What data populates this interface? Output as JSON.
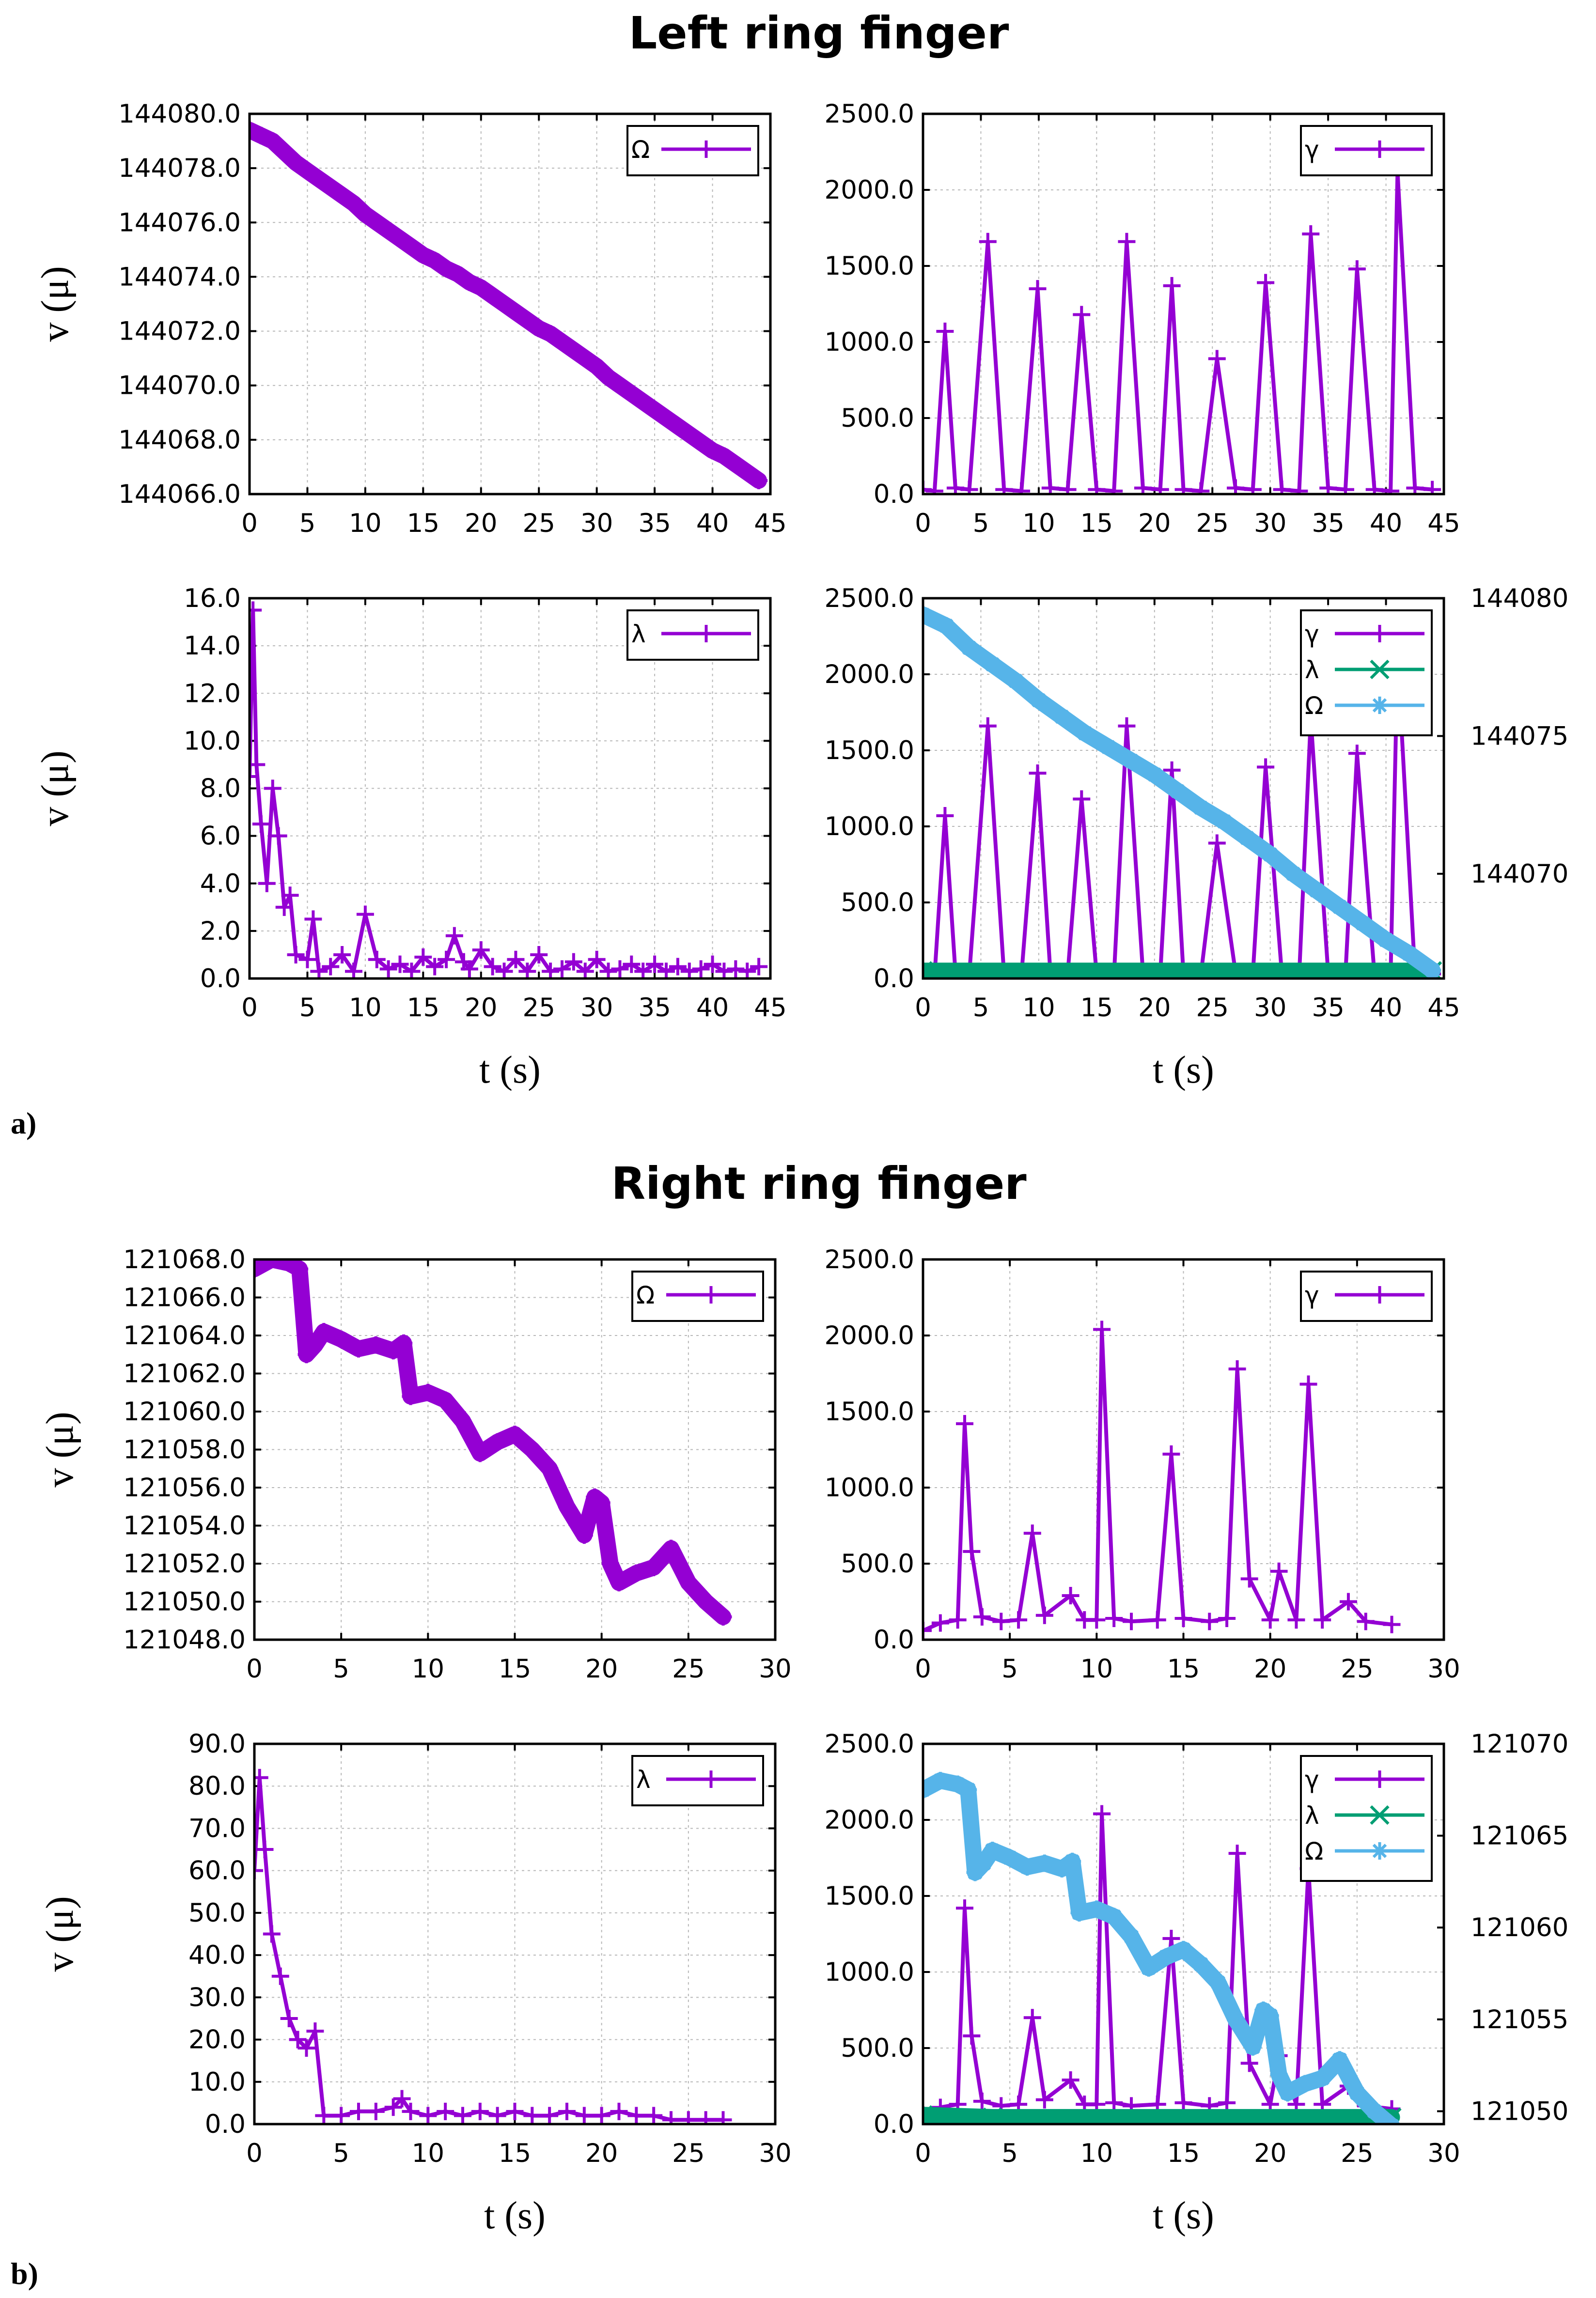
{
  "figure": {
    "sections": [
      {
        "title": "Left ring finger",
        "label": "a)"
      },
      {
        "title": "Right ring finger",
        "label": "b)"
      }
    ],
    "colors": {
      "gamma": "#9400d3",
      "lambda": "#009e73",
      "omega": "#56b4e9"
    }
  },
  "chart_data": [
    {
      "panel": "a-omega",
      "type": "line",
      "xlabel": "",
      "ylabel": "v (μ)",
      "xlim": [
        0,
        45
      ],
      "ylim": [
        144066.0,
        144080.0
      ],
      "xticks": [
        "0",
        "5",
        "10",
        "15",
        "20",
        "25",
        "30",
        "35",
        "40",
        "45"
      ],
      "yticks": [
        "144066.0",
        "144068.0",
        "144070.0",
        "144072.0",
        "144074.0",
        "144076.0",
        "144078.0",
        "144080.0"
      ],
      "grid": true,
      "legend": "top-right",
      "series": [
        {
          "name": "Ω",
          "color": "#9400d3",
          "marker": "+",
          "x": [
            0,
            1,
            2,
            3,
            4,
            5,
            6,
            7,
            8,
            9,
            10,
            11,
            12,
            13,
            14,
            15,
            16,
            17,
            18,
            19,
            20,
            21,
            22,
            23,
            24,
            25,
            26,
            27,
            28,
            29,
            30,
            31,
            32,
            33,
            34,
            35,
            36,
            37,
            38,
            39,
            40,
            41,
            42,
            43,
            44
          ],
          "y": [
            144079.4,
            144079.2,
            144079.0,
            144078.6,
            144078.2,
            144077.9,
            144077.6,
            144077.3,
            144077.0,
            144076.7,
            144076.3,
            144076.0,
            144075.7,
            144075.4,
            144075.1,
            144074.8,
            144074.6,
            144074.3,
            144074.1,
            144073.8,
            144073.6,
            144073.3,
            144073.0,
            144072.7,
            144072.4,
            144072.1,
            144071.9,
            144071.6,
            144071.3,
            144071.0,
            144070.7,
            144070.3,
            144070.0,
            144069.7,
            144069.4,
            144069.1,
            144068.8,
            144068.5,
            144068.2,
            144067.9,
            144067.6,
            144067.4,
            144067.1,
            144066.8,
            144066.5
          ]
        }
      ]
    },
    {
      "panel": "a-gamma",
      "type": "line",
      "xlabel": "",
      "ylabel": "",
      "xlim": [
        0,
        45
      ],
      "ylim": [
        0,
        2500
      ],
      "xticks": [
        "0",
        "5",
        "10",
        "15",
        "20",
        "25",
        "30",
        "35",
        "40",
        "45"
      ],
      "yticks": [
        "0.0",
        "500.0",
        "1000.0",
        "1500.0",
        "2000.0",
        "2500.0"
      ],
      "grid": true,
      "legend": "top-right",
      "series": [
        {
          "name": "γ",
          "color": "#9400d3",
          "marker": "+",
          "x": [
            0,
            1,
            1.9,
            2.8,
            4,
            5.6,
            7,
            8.5,
            9.9,
            11,
            12.5,
            13.7,
            15,
            16.5,
            17.6,
            19,
            20.5,
            21.5,
            22.5,
            24,
            25.4,
            27,
            28.5,
            29.6,
            31,
            32.5,
            33.5,
            35,
            36.5,
            37.5,
            39,
            40.4,
            41,
            42.5,
            44
          ],
          "y": [
            30,
            20,
            1070,
            40,
            30,
            1660,
            30,
            20,
            1350,
            40,
            30,
            1180,
            30,
            20,
            1660,
            40,
            30,
            1370,
            30,
            20,
            890,
            40,
            30,
            1390,
            30,
            20,
            1710,
            40,
            30,
            1480,
            30,
            20,
            2120,
            40,
            30
          ]
        }
      ]
    },
    {
      "panel": "a-lambda",
      "type": "line",
      "xlabel": "t (s)",
      "ylabel": "v (μ)",
      "xlim": [
        0,
        45
      ],
      "ylim": [
        0,
        16
      ],
      "xticks": [
        "0",
        "5",
        "10",
        "15",
        "20",
        "25",
        "30",
        "35",
        "40",
        "45"
      ],
      "yticks": [
        "0.0",
        "2.0",
        "4.0",
        "6.0",
        "8.0",
        "10.0",
        "12.0",
        "14.0",
        "16.0"
      ],
      "grid": true,
      "legend": "top-right",
      "series": [
        {
          "name": "λ",
          "color": "#9400d3",
          "marker": "+",
          "x": [
            0,
            0.3,
            0.6,
            1,
            1.5,
            2,
            2.5,
            3,
            3.5,
            4,
            5,
            5.5,
            6,
            7,
            8,
            9,
            10,
            11,
            12,
            13,
            14,
            15,
            16,
            17,
            17.7,
            18.5,
            19,
            20,
            21,
            22,
            23,
            24,
            25,
            26,
            27,
            28,
            29,
            30,
            31,
            32,
            33,
            34,
            35,
            36,
            37,
            38,
            39,
            40,
            41,
            42,
            43,
            44
          ],
          "y": [
            8.5,
            15.5,
            9.0,
            6.5,
            4.0,
            8.0,
            6.0,
            3.0,
            3.5,
            1.0,
            0.8,
            2.5,
            0.3,
            0.5,
            1.0,
            0.3,
            2.7,
            0.8,
            0.4,
            0.6,
            0.3,
            0.9,
            0.5,
            0.8,
            1.8,
            0.7,
            0.4,
            1.2,
            0.5,
            0.3,
            0.8,
            0.3,
            1.0,
            0.3,
            0.4,
            0.7,
            0.3,
            0.8,
            0.3,
            0.4,
            0.6,
            0.3,
            0.6,
            0.3,
            0.5,
            0.3,
            0.4,
            0.6,
            0.3,
            0.4,
            0.3,
            0.5
          ]
        }
      ]
    },
    {
      "panel": "a-combined",
      "type": "line",
      "xlabel": "t (s)",
      "ylabel": "",
      "xlim": [
        0,
        45
      ],
      "ylim": [
        0,
        2500
      ],
      "y2lim": [
        144066.2,
        144080.0
      ],
      "xticks": [
        "0",
        "5",
        "10",
        "15",
        "20",
        "25",
        "30",
        "35",
        "40",
        "45"
      ],
      "yticks": [
        "0.0",
        "500.0",
        "1000.0",
        "1500.0",
        "2000.0",
        "2500.0"
      ],
      "y2ticks": [
        "144070",
        "144075",
        "144080"
      ],
      "grid": true,
      "legend": "top-right",
      "series": [
        {
          "name": "γ",
          "color": "#9400d3",
          "marker": "+",
          "axis": "y",
          "x": [
            0,
            1,
            1.9,
            2.8,
            4,
            5.6,
            7,
            8.5,
            9.9,
            11,
            12.5,
            13.7,
            15,
            16.5,
            17.6,
            19,
            20.5,
            21.5,
            22.5,
            24,
            25.4,
            27,
            28.5,
            29.6,
            31,
            32.5,
            33.5,
            35,
            36.5,
            37.5,
            39,
            40.4,
            41,
            42.5,
            44
          ],
          "y": [
            30,
            20,
            1070,
            40,
            30,
            1660,
            30,
            20,
            1350,
            40,
            30,
            1180,
            30,
            20,
            1660,
            40,
            30,
            1370,
            30,
            20,
            890,
            40,
            30,
            1390,
            30,
            20,
            1710,
            40,
            30,
            1480,
            30,
            20,
            2120,
            40,
            30
          ]
        },
        {
          "name": "λ",
          "color": "#009e73",
          "marker": "×",
          "axis": "y",
          "x": [
            0,
            44
          ],
          "y": [
            50,
            50
          ]
        },
        {
          "name": "Ω",
          "color": "#56b4e9",
          "marker": "*",
          "axis": "y2",
          "x": [
            0,
            2,
            4,
            6,
            8,
            10,
            12,
            14,
            16,
            18,
            20,
            22,
            24,
            26,
            28,
            30,
            32,
            34,
            36,
            38,
            40,
            42,
            44
          ],
          "y": [
            144079.4,
            144079.0,
            144078.2,
            144077.6,
            144077.0,
            144076.3,
            144075.7,
            144075.1,
            144074.6,
            144074.1,
            144073.6,
            144073.0,
            144072.4,
            144071.9,
            144071.3,
            144070.7,
            144070.0,
            144069.4,
            144068.8,
            144068.2,
            144067.6,
            144067.1,
            144066.5
          ]
        }
      ]
    },
    {
      "panel": "b-omega",
      "type": "line",
      "xlabel": "",
      "ylabel": "v (μ)",
      "xlim": [
        0,
        30
      ],
      "ylim": [
        121048.0,
        121068.0
      ],
      "xticks": [
        "0",
        "5",
        "10",
        "15",
        "20",
        "25",
        "30"
      ],
      "yticks": [
        "121048.0",
        "121050.0",
        "121052.0",
        "121054.0",
        "121056.0",
        "121058.0",
        "121060.0",
        "121062.0",
        "121064.0",
        "121066.0",
        "121068.0"
      ],
      "grid": true,
      "legend": "top-right",
      "series": [
        {
          "name": "Ω",
          "color": "#9400d3",
          "marker": "+",
          "x": [
            0,
            1,
            2,
            2.6,
            3,
            3.5,
            4,
            5,
            6,
            7,
            8,
            8.6,
            9,
            10,
            11,
            12,
            13,
            14,
            15,
            16,
            17,
            18,
            19,
            19.6,
            20,
            20.5,
            21,
            22,
            23,
            24,
            25,
            26,
            27
          ],
          "y": [
            121067.5,
            121068.0,
            121067.8,
            121067.5,
            121063.0,
            121063.5,
            121064.2,
            121063.8,
            121063.3,
            121063.5,
            121063.2,
            121063.6,
            121060.8,
            121061.0,
            121060.6,
            121059.5,
            121057.8,
            121058.4,
            121058.8,
            121058.0,
            121057.0,
            121055.0,
            121053.5,
            121055.5,
            121055.2,
            121052.0,
            121051.0,
            121051.5,
            121051.8,
            121052.8,
            121051.0,
            121050.0,
            121049.2
          ]
        }
      ]
    },
    {
      "panel": "b-gamma",
      "type": "line",
      "xlabel": "",
      "ylabel": "",
      "xlim": [
        0,
        30
      ],
      "ylim": [
        0,
        2500
      ],
      "xticks": [
        "0",
        "5",
        "10",
        "15",
        "20",
        "25",
        "30"
      ],
      "yticks": [
        "0.0",
        "500.0",
        "1000.0",
        "1500.0",
        "2000.0",
        "2500.0"
      ],
      "grid": true,
      "legend": "top-right",
      "series": [
        {
          "name": "γ",
          "color": "#9400d3",
          "marker": "+",
          "x": [
            0,
            1,
            2,
            2.4,
            2.8,
            3.4,
            4.5,
            5.5,
            6.3,
            7,
            8.5,
            9.3,
            10,
            10.3,
            11,
            12,
            13.5,
            14.3,
            15,
            16.5,
            17.5,
            18.1,
            18.8,
            20,
            20.5,
            21.5,
            22.2,
            23,
            24.5,
            25.5,
            27
          ],
          "y": [
            60,
            110,
            130,
            1420,
            580,
            150,
            120,
            130,
            700,
            160,
            290,
            130,
            130,
            2040,
            140,
            120,
            130,
            1220,
            140,
            120,
            140,
            1780,
            400,
            130,
            450,
            130,
            1680,
            130,
            250,
            120,
            100
          ]
        }
      ]
    },
    {
      "panel": "b-lambda",
      "type": "line",
      "xlabel": "t (s)",
      "ylabel": "v (μ)",
      "xlim": [
        0,
        30
      ],
      "ylim": [
        0,
        90
      ],
      "xticks": [
        "0",
        "5",
        "10",
        "15",
        "20",
        "25",
        "30"
      ],
      "yticks": [
        "0.0",
        "10.0",
        "20.0",
        "30.0",
        "40.0",
        "50.0",
        "60.0",
        "70.0",
        "80.0",
        "90.0"
      ],
      "grid": true,
      "legend": "top-right",
      "series": [
        {
          "name": "λ",
          "color": "#9400d3",
          "marker": "+",
          "x": [
            0,
            0.3,
            0.6,
            1,
            1.5,
            2,
            2.5,
            3,
            3.5,
            4,
            5,
            6,
            7,
            8,
            8.5,
            9,
            10,
            11,
            12,
            13,
            14,
            15,
            16,
            17,
            18,
            19,
            20,
            21,
            22,
            23,
            24,
            25,
            26,
            27
          ],
          "y": [
            60,
            82,
            65,
            45,
            35,
            25,
            20,
            18,
            22,
            2,
            2,
            3,
            3,
            4,
            6,
            3,
            2,
            3,
            2,
            3,
            2,
            3,
            2,
            2,
            3,
            2,
            2,
            3,
            2,
            2,
            1,
            1,
            1,
            1
          ]
        }
      ]
    },
    {
      "panel": "b-combined",
      "type": "line",
      "xlabel": "t (s)",
      "ylabel": "",
      "xlim": [
        0,
        30
      ],
      "ylim": [
        0,
        2500
      ],
      "y2lim": [
        121049.3,
        121070.0
      ],
      "xticks": [
        "0",
        "5",
        "10",
        "15",
        "20",
        "25",
        "30"
      ],
      "yticks": [
        "0.0",
        "500.0",
        "1000.0",
        "1500.0",
        "2000.0",
        "2500.0"
      ],
      "y2ticks": [
        "121050",
        "121055",
        "121060",
        "121065",
        "121070"
      ],
      "grid": true,
      "legend": "top-right",
      "series": [
        {
          "name": "γ",
          "color": "#9400d3",
          "marker": "+",
          "axis": "y",
          "x": [
            0,
            1,
            2,
            2.4,
            2.8,
            3.4,
            4.5,
            5.5,
            6.3,
            7,
            8.5,
            9.3,
            10,
            10.3,
            11,
            12,
            13.5,
            14.3,
            15,
            16.5,
            17.5,
            18.1,
            18.8,
            20,
            20.5,
            21.5,
            22.2,
            23,
            24.5,
            25.5,
            27
          ],
          "y": [
            60,
            110,
            130,
            1420,
            580,
            150,
            120,
            130,
            700,
            160,
            290,
            130,
            130,
            2040,
            140,
            120,
            130,
            1220,
            140,
            120,
            140,
            1780,
            400,
            130,
            450,
            130,
            1680,
            130,
            250,
            120,
            100
          ]
        },
        {
          "name": "λ",
          "color": "#009e73",
          "marker": "×",
          "axis": "y",
          "x": [
            0,
            4,
            27
          ],
          "y": [
            60,
            45,
            45
          ]
        },
        {
          "name": "Ω",
          "color": "#56b4e9",
          "marker": "*",
          "axis": "y2",
          "x": [
            0,
            1,
            2,
            2.6,
            3,
            3.5,
            4,
            5,
            6,
            7,
            8,
            8.6,
            9,
            10,
            11,
            12,
            13,
            14,
            15,
            16,
            17,
            18,
            19,
            19.6,
            20,
            20.5,
            21,
            22,
            23,
            24,
            25,
            26,
            27
          ],
          "y": [
            121067.5,
            121068.0,
            121067.8,
            121067.5,
            121063.0,
            121063.5,
            121064.2,
            121063.8,
            121063.3,
            121063.5,
            121063.2,
            121063.6,
            121060.8,
            121061.0,
            121060.6,
            121059.5,
            121057.8,
            121058.4,
            121058.8,
            121058.0,
            121057.0,
            121055.0,
            121053.5,
            121055.5,
            121055.2,
            121052.0,
            121051.0,
            121051.5,
            121051.8,
            121052.8,
            121051.0,
            121050.0,
            121049.2
          ]
        }
      ]
    }
  ]
}
